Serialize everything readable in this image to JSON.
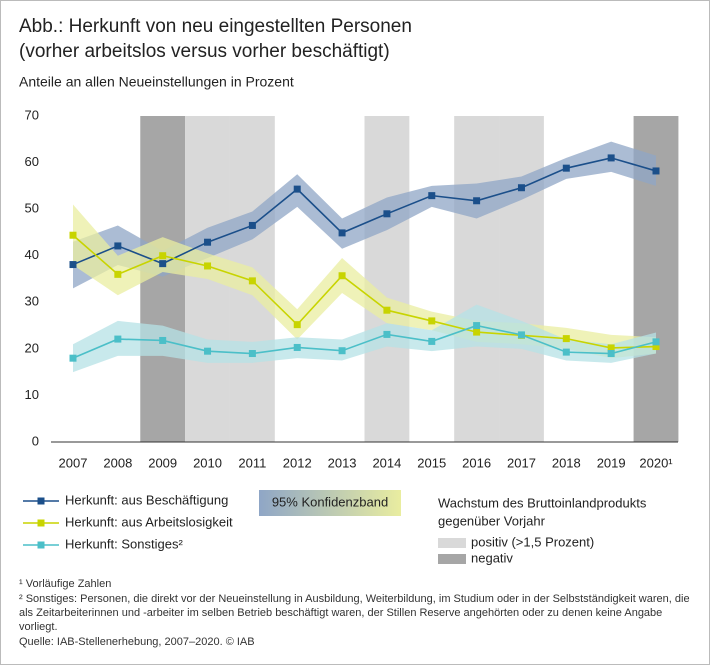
{
  "chart_data": {
    "type": "line",
    "title": [
      "Abb.: Herkunft von neu eingestellten Personen",
      "(vorher arbeitslos versus vorher beschäftigt)"
    ],
    "subtitle": "Anteile an allen Neueinstellungen in Prozent",
    "categories": [
      "2007",
      "2008",
      "2009",
      "2010",
      "2011",
      "2012",
      "2013",
      "2014",
      "2015",
      "2016",
      "2017",
      "2018",
      "2019",
      "2020¹"
    ],
    "ylim": [
      0,
      70
    ],
    "yticks": [
      0,
      10,
      20,
      30,
      40,
      50,
      60,
      70
    ],
    "series": [
      {
        "name": "Herkunft: aus Beschäftigung",
        "color": "#1b4f8a",
        "band_color": "#8fa6c6",
        "values": [
          38.1,
          42.1,
          38.3,
          42.9,
          46.5,
          54.3,
          44.9,
          49.0,
          52.9,
          51.8,
          54.6,
          58.8,
          61.0,
          58.2
        ],
        "upper": [
          43,
          46.5,
          41,
          46,
          49.5,
          57.5,
          48,
          52.5,
          55,
          55.5,
          57,
          61,
          64.5,
          61.5
        ],
        "lower": [
          33,
          38,
          35.5,
          39.5,
          43.5,
          50.5,
          41.5,
          45.5,
          50.5,
          48,
          52,
          56.5,
          58,
          55
        ]
      },
      {
        "name": "Herkunft: aus Arbeitslosigkeit",
        "color": "#c8d400",
        "band_color": "#e9eda0",
        "values": [
          44.4,
          36.0,
          40.0,
          37.8,
          34.6,
          25.2,
          35.7,
          28.3,
          26.0,
          23.6,
          22.9,
          22.2,
          20.2,
          20.5
        ],
        "upper": [
          51,
          40,
          44,
          40.5,
          37.5,
          28.5,
          39.5,
          31,
          28,
          26,
          25.5,
          24.5,
          23,
          22.5
        ],
        "lower": [
          38,
          31.5,
          36.5,
          35,
          31.5,
          22,
          32,
          25.5,
          24,
          21.5,
          21,
          20,
          18,
          19
        ]
      },
      {
        "name": "Herkunft: Sonstiges²",
        "color": "#4bbfc8",
        "band_color": "#b5e2e5",
        "values": [
          18.0,
          22.1,
          21.8,
          19.5,
          19.0,
          20.3,
          19.6,
          23.1,
          21.6,
          25.0,
          23.0,
          19.3,
          19.0,
          21.5
        ],
        "upper": [
          21,
          26,
          25,
          22,
          21.5,
          22.5,
          22,
          25.5,
          24,
          29.5,
          26,
          22,
          21,
          23.5
        ],
        "lower": [
          15,
          18.5,
          18.5,
          17,
          17,
          18,
          17.5,
          20.5,
          19.5,
          20.5,
          20,
          17.5,
          17,
          19
        ]
      }
    ],
    "band_label": "95% Konfidenzband",
    "growth": {
      "title": [
        "Wachstum des Bruttoinlandprodukts",
        "gegenüber Vorjahr"
      ],
      "positive": {
        "label": "positiv (>1,5 Prozent)",
        "color": "#d9d9d9"
      },
      "negative": {
        "label": "negativ",
        "color": "#a6a6a6"
      },
      "classes": [
        null,
        null,
        "negative",
        "positive",
        "positive",
        null,
        null,
        "positive",
        null,
        "positive",
        "positive",
        null,
        null,
        "negative"
      ]
    },
    "footnotes": [
      "¹ Vorläufige Zahlen",
      "² Sonstiges: Personen, die direkt vor der Neueinstellung in Ausbildung, Weiterbildung, im Studium oder in der Selbstständigkeit waren, die als Zeitarbeiterinnen und -arbeiter im selben Betrieb beschäftigt waren, der Stillen Reserve angehörten oder zu denen keine Angabe vorliegt."
    ],
    "source": "Quelle: IAB-Stellenerhebung, 2007–2020. © IAB"
  }
}
